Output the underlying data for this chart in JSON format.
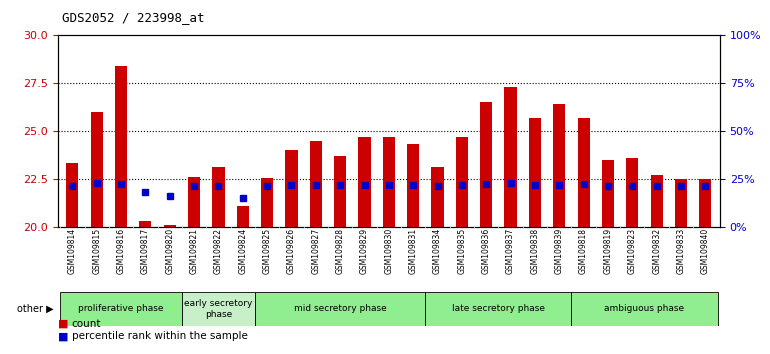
{
  "title": "GDS2052 / 223998_at",
  "samples": [
    "GSM109814",
    "GSM109815",
    "GSM109816",
    "GSM109817",
    "GSM109820",
    "GSM109821",
    "GSM109822",
    "GSM109824",
    "GSM109825",
    "GSM109826",
    "GSM109827",
    "GSM109828",
    "GSM109829",
    "GSM109830",
    "GSM109831",
    "GSM109834",
    "GSM109835",
    "GSM109836",
    "GSM109837",
    "GSM109838",
    "GSM109839",
    "GSM109818",
    "GSM109819",
    "GSM109823",
    "GSM109832",
    "GSM109833",
    "GSM109840"
  ],
  "count_values": [
    23.3,
    26.0,
    28.4,
    20.3,
    20.1,
    22.6,
    23.1,
    21.1,
    22.55,
    24.0,
    24.5,
    23.7,
    24.7,
    24.7,
    24.3,
    23.1,
    24.7,
    26.5,
    27.3,
    25.7,
    26.4,
    25.7,
    23.5,
    23.6,
    22.7,
    22.5,
    22.5
  ],
  "percentile_values": [
    22.1,
    22.3,
    22.25,
    21.8,
    21.6,
    22.1,
    22.1,
    21.5,
    22.1,
    22.2,
    22.15,
    22.2,
    22.2,
    22.2,
    22.15,
    22.1,
    22.2,
    22.25,
    22.3,
    22.2,
    22.2,
    22.25,
    22.1,
    22.1,
    22.1,
    22.1,
    22.1
  ],
  "phase_info": [
    {
      "name": "proliferative phase",
      "start": 0,
      "end": 4,
      "color": "#90EE90"
    },
    {
      "name": "early secretory\nphase",
      "start": 5,
      "end": 7,
      "color": "#c8f0c8"
    },
    {
      "name": "mid secretory phase",
      "start": 8,
      "end": 14,
      "color": "#90EE90"
    },
    {
      "name": "late secretory phase",
      "start": 15,
      "end": 20,
      "color": "#90EE90"
    },
    {
      "name": "ambiguous phase",
      "start": 21,
      "end": 26,
      "color": "#90EE90"
    }
  ],
  "ylim_left": [
    20,
    30
  ],
  "ylim_right": [
    0,
    100
  ],
  "bar_color": "#cc0000",
  "dot_color": "#0000cc",
  "ylabel_left_color": "#cc0000",
  "ylabel_right_color": "#0000cc",
  "yticks_left": [
    20,
    22.5,
    25,
    27.5,
    30
  ],
  "yticks_right": [
    0,
    25,
    50,
    75,
    100
  ],
  "dotted_lines": [
    22.5,
    25,
    27.5
  ],
  "bar_width": 0.5,
  "plot_bg": "#ffffff"
}
